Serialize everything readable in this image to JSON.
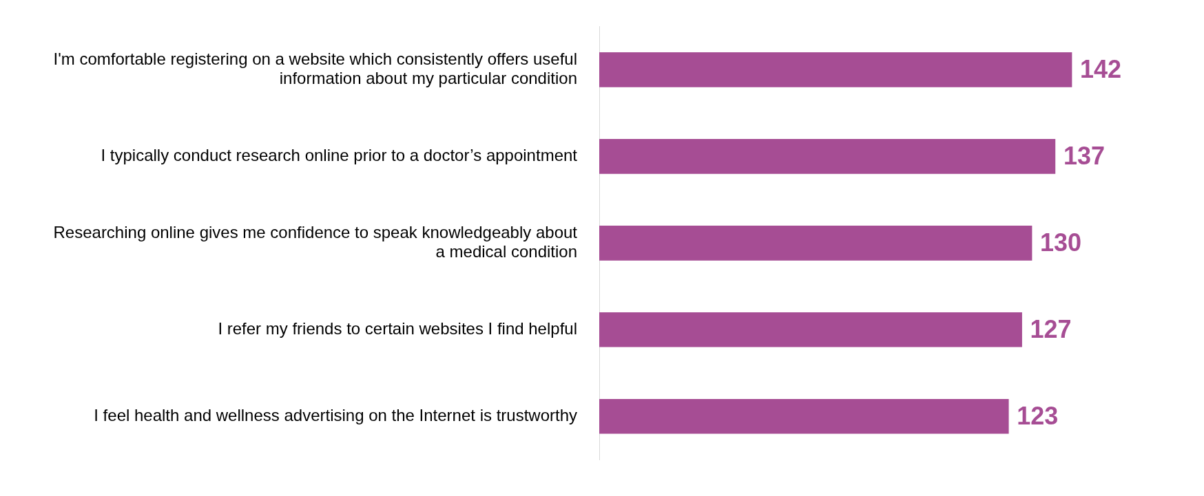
{
  "chart_data": {
    "type": "bar",
    "orientation": "horizontal",
    "categories": [
      "I'm comfortable registering on a website which consistently offers useful information about my particular condition",
      "I typically conduct research online prior to a doctor’s appointment",
      "Researching online gives me confidence to speak knowledgeably about a medical condition",
      "I refer my friends to certain websites I find helpful",
      "I feel health and wellness advertising on the Internet is trustworthy"
    ],
    "values": [
      142,
      137,
      130,
      127,
      123
    ],
    "color": "#a64d94",
    "tick_labels": "y",
    "data_labels": true
  }
}
